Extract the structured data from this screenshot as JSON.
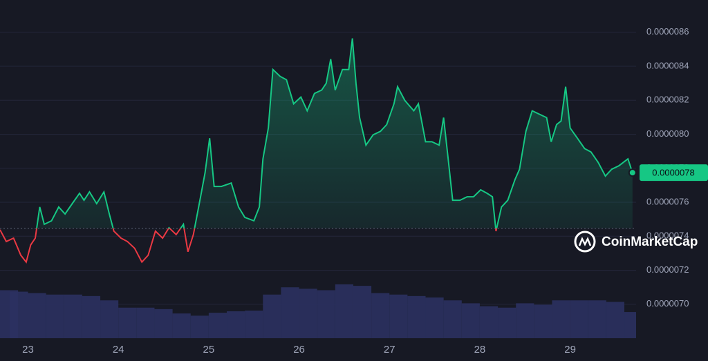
{
  "chart_data": {
    "type": "line",
    "x": [
      22.69,
      22.76,
      22.84,
      22.92,
      22.98,
      23.03,
      23.08,
      23.13,
      23.18,
      23.26,
      23.34,
      23.41,
      23.49,
      23.57,
      23.62,
      23.68,
      23.76,
      23.84,
      23.9,
      23.95,
      24.03,
      24.1,
      24.18,
      24.26,
      24.33,
      24.41,
      24.49,
      24.56,
      24.64,
      24.72,
      24.77,
      24.83,
      24.91,
      24.96,
      25.01,
      25.06,
      25.14,
      25.25,
      25.33,
      25.4,
      25.5,
      25.56,
      25.6,
      25.66,
      25.71,
      25.79,
      25.86,
      25.94,
      26.02,
      26.09,
      26.17,
      26.25,
      26.3,
      26.35,
      26.4,
      26.48,
      26.55,
      26.59,
      26.63,
      26.67,
      26.74,
      26.82,
      26.9,
      26.97,
      27.05,
      27.09,
      27.17,
      27.27,
      27.32,
      27.4,
      27.47,
      27.55,
      27.6,
      27.65,
      27.7,
      27.78,
      27.86,
      27.93,
      28.01,
      28.08,
      28.14,
      28.18,
      28.24,
      28.31,
      28.39,
      28.44,
      28.51,
      28.58,
      28.66,
      28.74,
      28.79,
      28.85,
      28.9,
      28.95,
      29.0,
      29.08,
      29.16,
      29.23,
      29.31,
      29.39,
      29.46,
      29.54,
      29.64,
      29.69
    ],
    "values": [
      7.438e-06,
      7.369e-06,
      7.389e-06,
      7.288e-06,
      7.248e-06,
      7.349e-06,
      7.389e-06,
      7.572e-06,
      7.47e-06,
      7.491e-06,
      7.572e-06,
      7.531e-06,
      7.592e-06,
      7.653e-06,
      7.612e-06,
      7.661e-06,
      7.592e-06,
      7.661e-06,
      7.531e-06,
      7.43e-06,
      7.389e-06,
      7.369e-06,
      7.329e-06,
      7.248e-06,
      7.288e-06,
      7.43e-06,
      7.389e-06,
      7.45e-06,
      7.41e-06,
      7.47e-06,
      7.309e-06,
      7.41e-06,
      7.632e-06,
      7.774e-06,
      7.977e-06,
      7.693e-06,
      7.693e-06,
      7.713e-06,
      7.572e-06,
      7.511e-06,
      7.491e-06,
      7.572e-06,
      7.855e-06,
      8.037e-06,
      8.381e-06,
      8.341e-06,
      8.321e-06,
      8.179e-06,
      8.219e-06,
      8.138e-06,
      8.24e-06,
      8.26e-06,
      8.3e-06,
      8.442e-06,
      8.26e-06,
      8.381e-06,
      8.381e-06,
      8.564e-06,
      8.3e-06,
      8.098e-06,
      7.936e-06,
      7.997e-06,
      8.017e-06,
      8.057e-06,
      8.179e-06,
      8.28e-06,
      8.199e-06,
      8.138e-06,
      8.179e-06,
      7.956e-06,
      7.956e-06,
      7.936e-06,
      8.098e-06,
      7.855e-06,
      7.612e-06,
      7.612e-06,
      7.632e-06,
      7.632e-06,
      7.673e-06,
      7.653e-06,
      7.632e-06,
      7.43e-06,
      7.572e-06,
      7.612e-06,
      7.734e-06,
      7.794e-06,
      8.017e-06,
      8.138e-06,
      8.118e-06,
      8.098e-06,
      7.956e-06,
      8.057e-06,
      8.078e-06,
      8.28e-06,
      8.037e-06,
      7.977e-06,
      7.916e-06,
      7.896e-06,
      7.835e-06,
      7.754e-06,
      7.794e-06,
      7.815e-06,
      7.855e-06,
      7.774e-06
    ],
    "last_value_label": "0.0000078",
    "baseline": 7.446e-06,
    "up_color": "#16c784",
    "down_color": "#ea3943",
    "volume": {
      "x": [
        22.7,
        22.9,
        23.1,
        23.3,
        23.5,
        23.7,
        23.9,
        24.1,
        24.3,
        24.5,
        24.7,
        24.9,
        25.1,
        25.3,
        25.5,
        25.7,
        25.9,
        26.1,
        26.3,
        26.5,
        26.7,
        26.9,
        27.1,
        27.3,
        27.5,
        27.7,
        27.9,
        28.1,
        28.3,
        28.5,
        28.7,
        28.9,
        29.1,
        29.3,
        29.5,
        29.7
      ],
      "values": [
        66,
        64,
        62,
        60,
        60,
        58,
        52,
        42,
        42,
        40,
        34,
        31,
        35,
        37,
        38,
        60,
        70,
        68,
        66,
        74,
        72,
        62,
        60,
        58,
        56,
        52,
        48,
        44,
        42,
        48,
        46,
        52,
        52,
        52,
        50,
        36
      ],
      "color": "#2b3160"
    },
    "xlim": [
      22.69,
      29.73
    ],
    "xticks": [
      23,
      24,
      25,
      26,
      27,
      28,
      29
    ],
    "ylim": [
      6.8e-06,
      8.79e-06
    ],
    "yticks": [
      {
        "value": 8.6e-06,
        "label": "0.0000086"
      },
      {
        "value": 8.4e-06,
        "label": "0.0000084"
      },
      {
        "value": 8.2e-06,
        "label": "0.0000082"
      },
      {
        "value": 8e-06,
        "label": "0.0000080"
      },
      {
        "value": 7.8e-06,
        "label": "0.0000078"
      },
      {
        "value": 7.6e-06,
        "label": "0.0000076"
      },
      {
        "value": 7.4e-06,
        "label": "0.0000074"
      },
      {
        "value": 7.2e-06,
        "label": "0.0000072"
      },
      {
        "value": 7e-06,
        "label": "0.0000070"
      }
    ],
    "grid": true,
    "watermark": "CoinMarketCap"
  }
}
